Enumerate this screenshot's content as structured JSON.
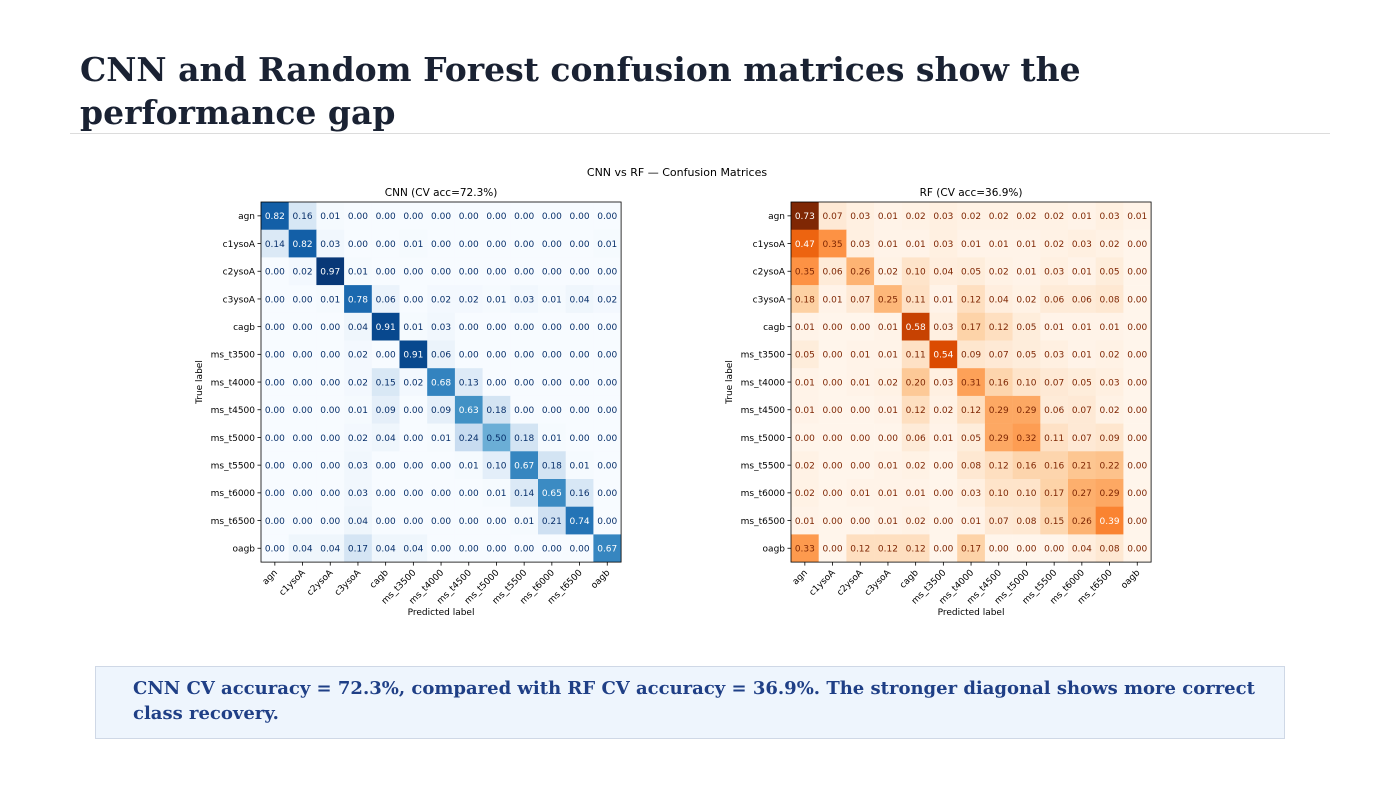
{
  "slide": {
    "title": "CNN and Random Forest confusion matrices show the performance gap",
    "callout": "CNN CV accuracy = 72.3%, compared with RF CV accuracy = 36.9%. The stronger diagonal shows more correct class recovery."
  },
  "figure": {
    "suptitle": "CNN vs RF — Confusion Matrices"
  },
  "chart_data": [
    {
      "type": "heatmap",
      "title": "CNN  (CV acc=72.3%)",
      "xlabel": "Predicted label",
      "ylabel": "True label",
      "colormap": "Blues",
      "color_low": "#f7fbff",
      "color_high": "#08306b",
      "range": [
        0,
        1
      ],
      "classes": [
        "agn",
        "c1ysoA",
        "c2ysoA",
        "c3ysoA",
        "cagb",
        "ms_t3500",
        "ms_t4000",
        "ms_t4500",
        "ms_t5000",
        "ms_t5500",
        "ms_t6000",
        "ms_t6500",
        "oagb"
      ],
      "values": [
        [
          0.82,
          0.16,
          0.01,
          0.0,
          0.0,
          0.0,
          0.0,
          0.0,
          0.0,
          0.0,
          0.0,
          0.0,
          0.0
        ],
        [
          0.14,
          0.82,
          0.03,
          0.0,
          0.0,
          0.01,
          0.0,
          0.0,
          0.0,
          0.0,
          0.0,
          0.0,
          0.01
        ],
        [
          0.0,
          0.02,
          0.97,
          0.01,
          0.0,
          0.0,
          0.0,
          0.0,
          0.0,
          0.0,
          0.0,
          0.0,
          0.0
        ],
        [
          0.0,
          0.0,
          0.01,
          0.78,
          0.06,
          0.0,
          0.02,
          0.02,
          0.01,
          0.03,
          0.01,
          0.04,
          0.02
        ],
        [
          0.0,
          0.0,
          0.0,
          0.04,
          0.91,
          0.01,
          0.03,
          0.0,
          0.0,
          0.0,
          0.0,
          0.0,
          0.0
        ],
        [
          0.0,
          0.0,
          0.0,
          0.02,
          0.0,
          0.91,
          0.06,
          0.0,
          0.0,
          0.0,
          0.0,
          0.0,
          0.0
        ],
        [
          0.0,
          0.0,
          0.0,
          0.02,
          0.15,
          0.02,
          0.68,
          0.13,
          0.0,
          0.0,
          0.0,
          0.0,
          0.0
        ],
        [
          0.0,
          0.0,
          0.0,
          0.01,
          0.09,
          0.0,
          0.09,
          0.63,
          0.18,
          0.0,
          0.0,
          0.0,
          0.0
        ],
        [
          0.0,
          0.0,
          0.0,
          0.02,
          0.04,
          0.0,
          0.01,
          0.24,
          0.5,
          0.18,
          0.01,
          0.0,
          0.0
        ],
        [
          0.0,
          0.0,
          0.0,
          0.03,
          0.0,
          0.0,
          0.0,
          0.01,
          0.1,
          0.67,
          0.18,
          0.01,
          0.0
        ],
        [
          0.0,
          0.0,
          0.0,
          0.03,
          0.0,
          0.0,
          0.0,
          0.0,
          0.01,
          0.14,
          0.65,
          0.16,
          0.0
        ],
        [
          0.0,
          0.0,
          0.0,
          0.04,
          0.0,
          0.0,
          0.0,
          0.0,
          0.0,
          0.01,
          0.21,
          0.74,
          0.0
        ],
        [
          0.0,
          0.04,
          0.04,
          0.17,
          0.04,
          0.04,
          0.0,
          0.0,
          0.0,
          0.0,
          0.0,
          0.0,
          0.67
        ]
      ]
    },
    {
      "type": "heatmap",
      "title": "RF  (CV acc=36.9%)",
      "xlabel": "Predicted label",
      "ylabel": "True label",
      "colormap": "Oranges",
      "color_low": "#fff5eb",
      "color_high": "#7f2704",
      "range": [
        0,
        0.73
      ],
      "classes": [
        "agn",
        "c1ysoA",
        "c2ysoA",
        "c3ysoA",
        "cagb",
        "ms_t3500",
        "ms_t4000",
        "ms_t4500",
        "ms_t5000",
        "ms_t5500",
        "ms_t6000",
        "ms_t6500",
        "oagb"
      ],
      "values": [
        [
          0.73,
          0.07,
          0.03,
          0.01,
          0.02,
          0.03,
          0.02,
          0.02,
          0.02,
          0.02,
          0.01,
          0.03,
          0.01
        ],
        [
          0.47,
          0.35,
          0.03,
          0.01,
          0.01,
          0.03,
          0.01,
          0.01,
          0.01,
          0.02,
          0.03,
          0.02,
          0.0
        ],
        [
          0.35,
          0.06,
          0.26,
          0.02,
          0.1,
          0.04,
          0.05,
          0.02,
          0.01,
          0.03,
          0.01,
          0.05,
          0.0
        ],
        [
          0.18,
          0.01,
          0.07,
          0.25,
          0.11,
          0.01,
          0.12,
          0.04,
          0.02,
          0.06,
          0.06,
          0.08,
          0.0
        ],
        [
          0.01,
          0.0,
          0.0,
          0.01,
          0.58,
          0.03,
          0.17,
          0.12,
          0.05,
          0.01,
          0.01,
          0.01,
          0.0
        ],
        [
          0.05,
          0.0,
          0.01,
          0.01,
          0.11,
          0.54,
          0.09,
          0.07,
          0.05,
          0.03,
          0.01,
          0.02,
          0.0
        ],
        [
          0.01,
          0.0,
          0.01,
          0.02,
          0.2,
          0.03,
          0.31,
          0.16,
          0.1,
          0.07,
          0.05,
          0.03,
          0.0
        ],
        [
          0.01,
          0.0,
          0.0,
          0.01,
          0.12,
          0.02,
          0.12,
          0.29,
          0.29,
          0.06,
          0.07,
          0.02,
          0.0
        ],
        [
          0.0,
          0.0,
          0.0,
          0.0,
          0.06,
          0.01,
          0.05,
          0.29,
          0.32,
          0.11,
          0.07,
          0.09,
          0.0
        ],
        [
          0.02,
          0.0,
          0.0,
          0.01,
          0.02,
          0.0,
          0.08,
          0.12,
          0.16,
          0.16,
          0.21,
          0.22,
          0.0
        ],
        [
          0.02,
          0.0,
          0.01,
          0.01,
          0.01,
          0.0,
          0.03,
          0.1,
          0.1,
          0.17,
          0.27,
          0.29,
          0.0
        ],
        [
          0.01,
          0.0,
          0.0,
          0.01,
          0.02,
          0.0,
          0.01,
          0.07,
          0.08,
          0.15,
          0.26,
          0.39,
          0.0
        ],
        [
          0.33,
          0.0,
          0.12,
          0.12,
          0.12,
          0.0,
          0.17,
          0.0,
          0.0,
          0.0,
          0.04,
          0.08,
          0.0
        ]
      ]
    }
  ]
}
